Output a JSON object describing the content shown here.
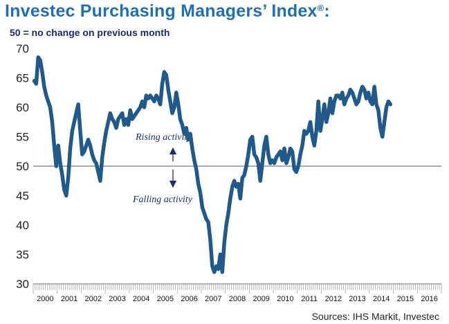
{
  "chart_data": {
    "type": "line",
    "title": "Investec Purchasing Managers’ Index",
    "title_mark": "®",
    "title_suffix": ":",
    "subtitle": "50 =  no change on previous month",
    "source": "Sources: IHS Markit, Investec",
    "ylim": [
      30,
      70
    ],
    "yticks": [
      30,
      35,
      40,
      45,
      50,
      55,
      60,
      65,
      70
    ],
    "reference_line": 50,
    "years": [
      "2000",
      "2001",
      "2002",
      "2003",
      "2004",
      "2005",
      "2006",
      "2007",
      "2008",
      "2009",
      "2010",
      "2011",
      "2012",
      "2013",
      "2014",
      "2015",
      "2016"
    ],
    "annotations": {
      "up": "Rising activity",
      "down": "Falling activity"
    },
    "series_color": "#1f5a8a",
    "series": [
      {
        "name": "Investec PMI",
        "start": "2000-01",
        "values": [
          64.5,
          64.0,
          68.5,
          68.0,
          66.0,
          63.5,
          62.0,
          61.0,
          60.0,
          57.5,
          53.5,
          50.0,
          53.5,
          50.5,
          48.5,
          46.0,
          45.0,
          48.0,
          53.0,
          56.0,
          57.5,
          59.0,
          60.5,
          56.0,
          52.0,
          52.5,
          53.5,
          54.5,
          53.5,
          52.0,
          51.0,
          50.5,
          49.0,
          47.5,
          51.5,
          54.0,
          56.0,
          57.5,
          59.0,
          58.0,
          57.5,
          56.5,
          58.0,
          58.5,
          59.0,
          57.0,
          58.0,
          57.0,
          59.5,
          58.0,
          58.5,
          59.0,
          59.5,
          60.0,
          61.0,
          60.0,
          62.0,
          61.5,
          62.0,
          61.5,
          61.0,
          62.0,
          61.5,
          60.5,
          64.0,
          66.0,
          65.5,
          63.0,
          61.0,
          59.0,
          60.0,
          62.5,
          60.5,
          58.0,
          57.0,
          55.5,
          56.5,
          54.5,
          55.5,
          53.0,
          51.0,
          49.5,
          47.0,
          45.5,
          43.0,
          42.0,
          41.0,
          40.5,
          37.5,
          33.0,
          32.0,
          33.0,
          32.5,
          35.0,
          32.0,
          37.0,
          40.0,
          42.0,
          44.5,
          46.5,
          47.5,
          46.5,
          47.0,
          44.5,
          48.0,
          48.5,
          50.0,
          52.0,
          54.5,
          55.0,
          52.0,
          51.5,
          50.5,
          47.5,
          50.5,
          53.5,
          55.0,
          52.0,
          50.5,
          51.0,
          50.5,
          51.5,
          52.0,
          52.5,
          51.0,
          53.0,
          50.5,
          51.5,
          53.0,
          52.5,
          49.5,
          49.0,
          50.0,
          52.0,
          53.5,
          56.0,
          55.5,
          56.0,
          57.5,
          55.0,
          53.5,
          56.0,
          61.0,
          56.0,
          58.0,
          60.5,
          57.5,
          59.0,
          61.5,
          59.0,
          61.0,
          62.0,
          62.0,
          61.5,
          62.5,
          60.5,
          61.5,
          62.0,
          63.0,
          62.5,
          61.5,
          60.5,
          61.0,
          62.5,
          63.5,
          63.0,
          61.5,
          62.5,
          61.0,
          60.5,
          63.5,
          60.5,
          59.5,
          56.5,
          55.0,
          57.5,
          60.0,
          61.0,
          60.5
        ]
      }
    ]
  }
}
